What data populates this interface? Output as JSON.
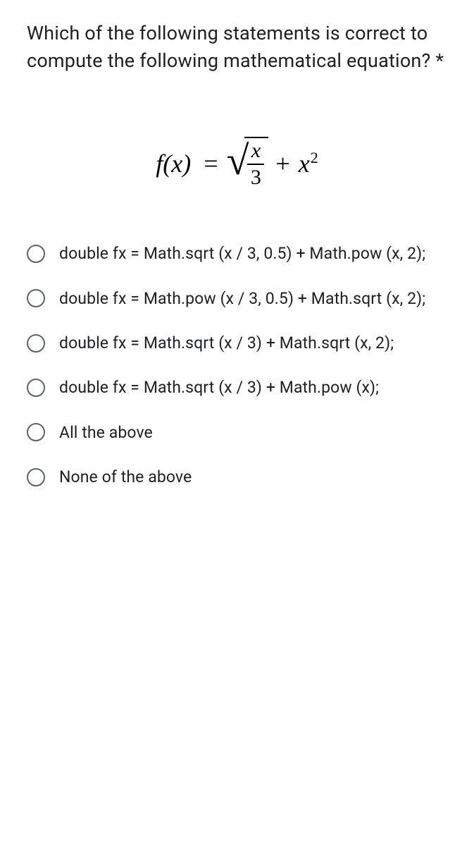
{
  "question": {
    "text": "Which of the following statements is correct to compute the following mathematical equation?",
    "required_mark": "*"
  },
  "equation": {
    "lhs": "f(x)",
    "eq": "=",
    "frac_num": "x",
    "frac_den": "3",
    "plus": "+",
    "x": "x",
    "exp": "2"
  },
  "options": [
    {
      "text": "double fx = Math.sqrt (x / 3, 0.5) + Math.pow (x, 2);"
    },
    {
      "text": "double fx = Math.pow (x / 3, 0.5) + Math.sqrt (x, 2);"
    },
    {
      "text": "double fx = Math.sqrt (x / 3) + Math.sqrt (x, 2);"
    },
    {
      "text": "double fx = Math.sqrt (x / 3) + Math.pow (x);"
    },
    {
      "text": "All the above"
    },
    {
      "text": "None of the above"
    }
  ],
  "colors": {
    "text": "#202124",
    "radio_border": "#5f6368",
    "background": "#ffffff"
  },
  "typography": {
    "question_fontsize": 27,
    "option_fontsize": 23,
    "equation_fontsize": 36
  }
}
